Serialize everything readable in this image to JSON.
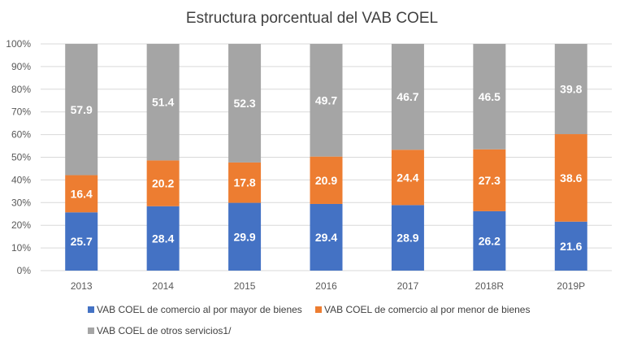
{
  "chart_data": {
    "type": "bar",
    "stacked": "percent",
    "title": "Estructura porcentual del VAB COEL",
    "xlabel": "",
    "ylabel": "",
    "categories": [
      "2013",
      "2014",
      "2015",
      "2016",
      "2017",
      "2018R",
      "2019P"
    ],
    "series": [
      {
        "name": "VAB COEL de comercio al por mayor de bienes",
        "color": "#4472C4",
        "values": [
          25.7,
          28.4,
          29.9,
          29.4,
          28.9,
          26.2,
          21.6
        ]
      },
      {
        "name": "VAB COEL de comercio al por menor de bienes",
        "color": "#ED7D31",
        "values": [
          16.4,
          20.2,
          17.8,
          20.9,
          24.4,
          27.3,
          38.6
        ]
      },
      {
        "name": "VAB COEL de otros servicios1/",
        "color": "#A5A5A5",
        "values": [
          57.9,
          51.4,
          52.3,
          49.7,
          46.7,
          46.5,
          39.8
        ]
      }
    ],
    "yticks": [
      "0%",
      "10%",
      "20%",
      "30%",
      "40%",
      "50%",
      "60%",
      "70%",
      "80%",
      "90%",
      "100%"
    ],
    "ylim": [
      0,
      100
    ],
    "grid": true,
    "legend_position": "bottom",
    "data_labels": true
  }
}
